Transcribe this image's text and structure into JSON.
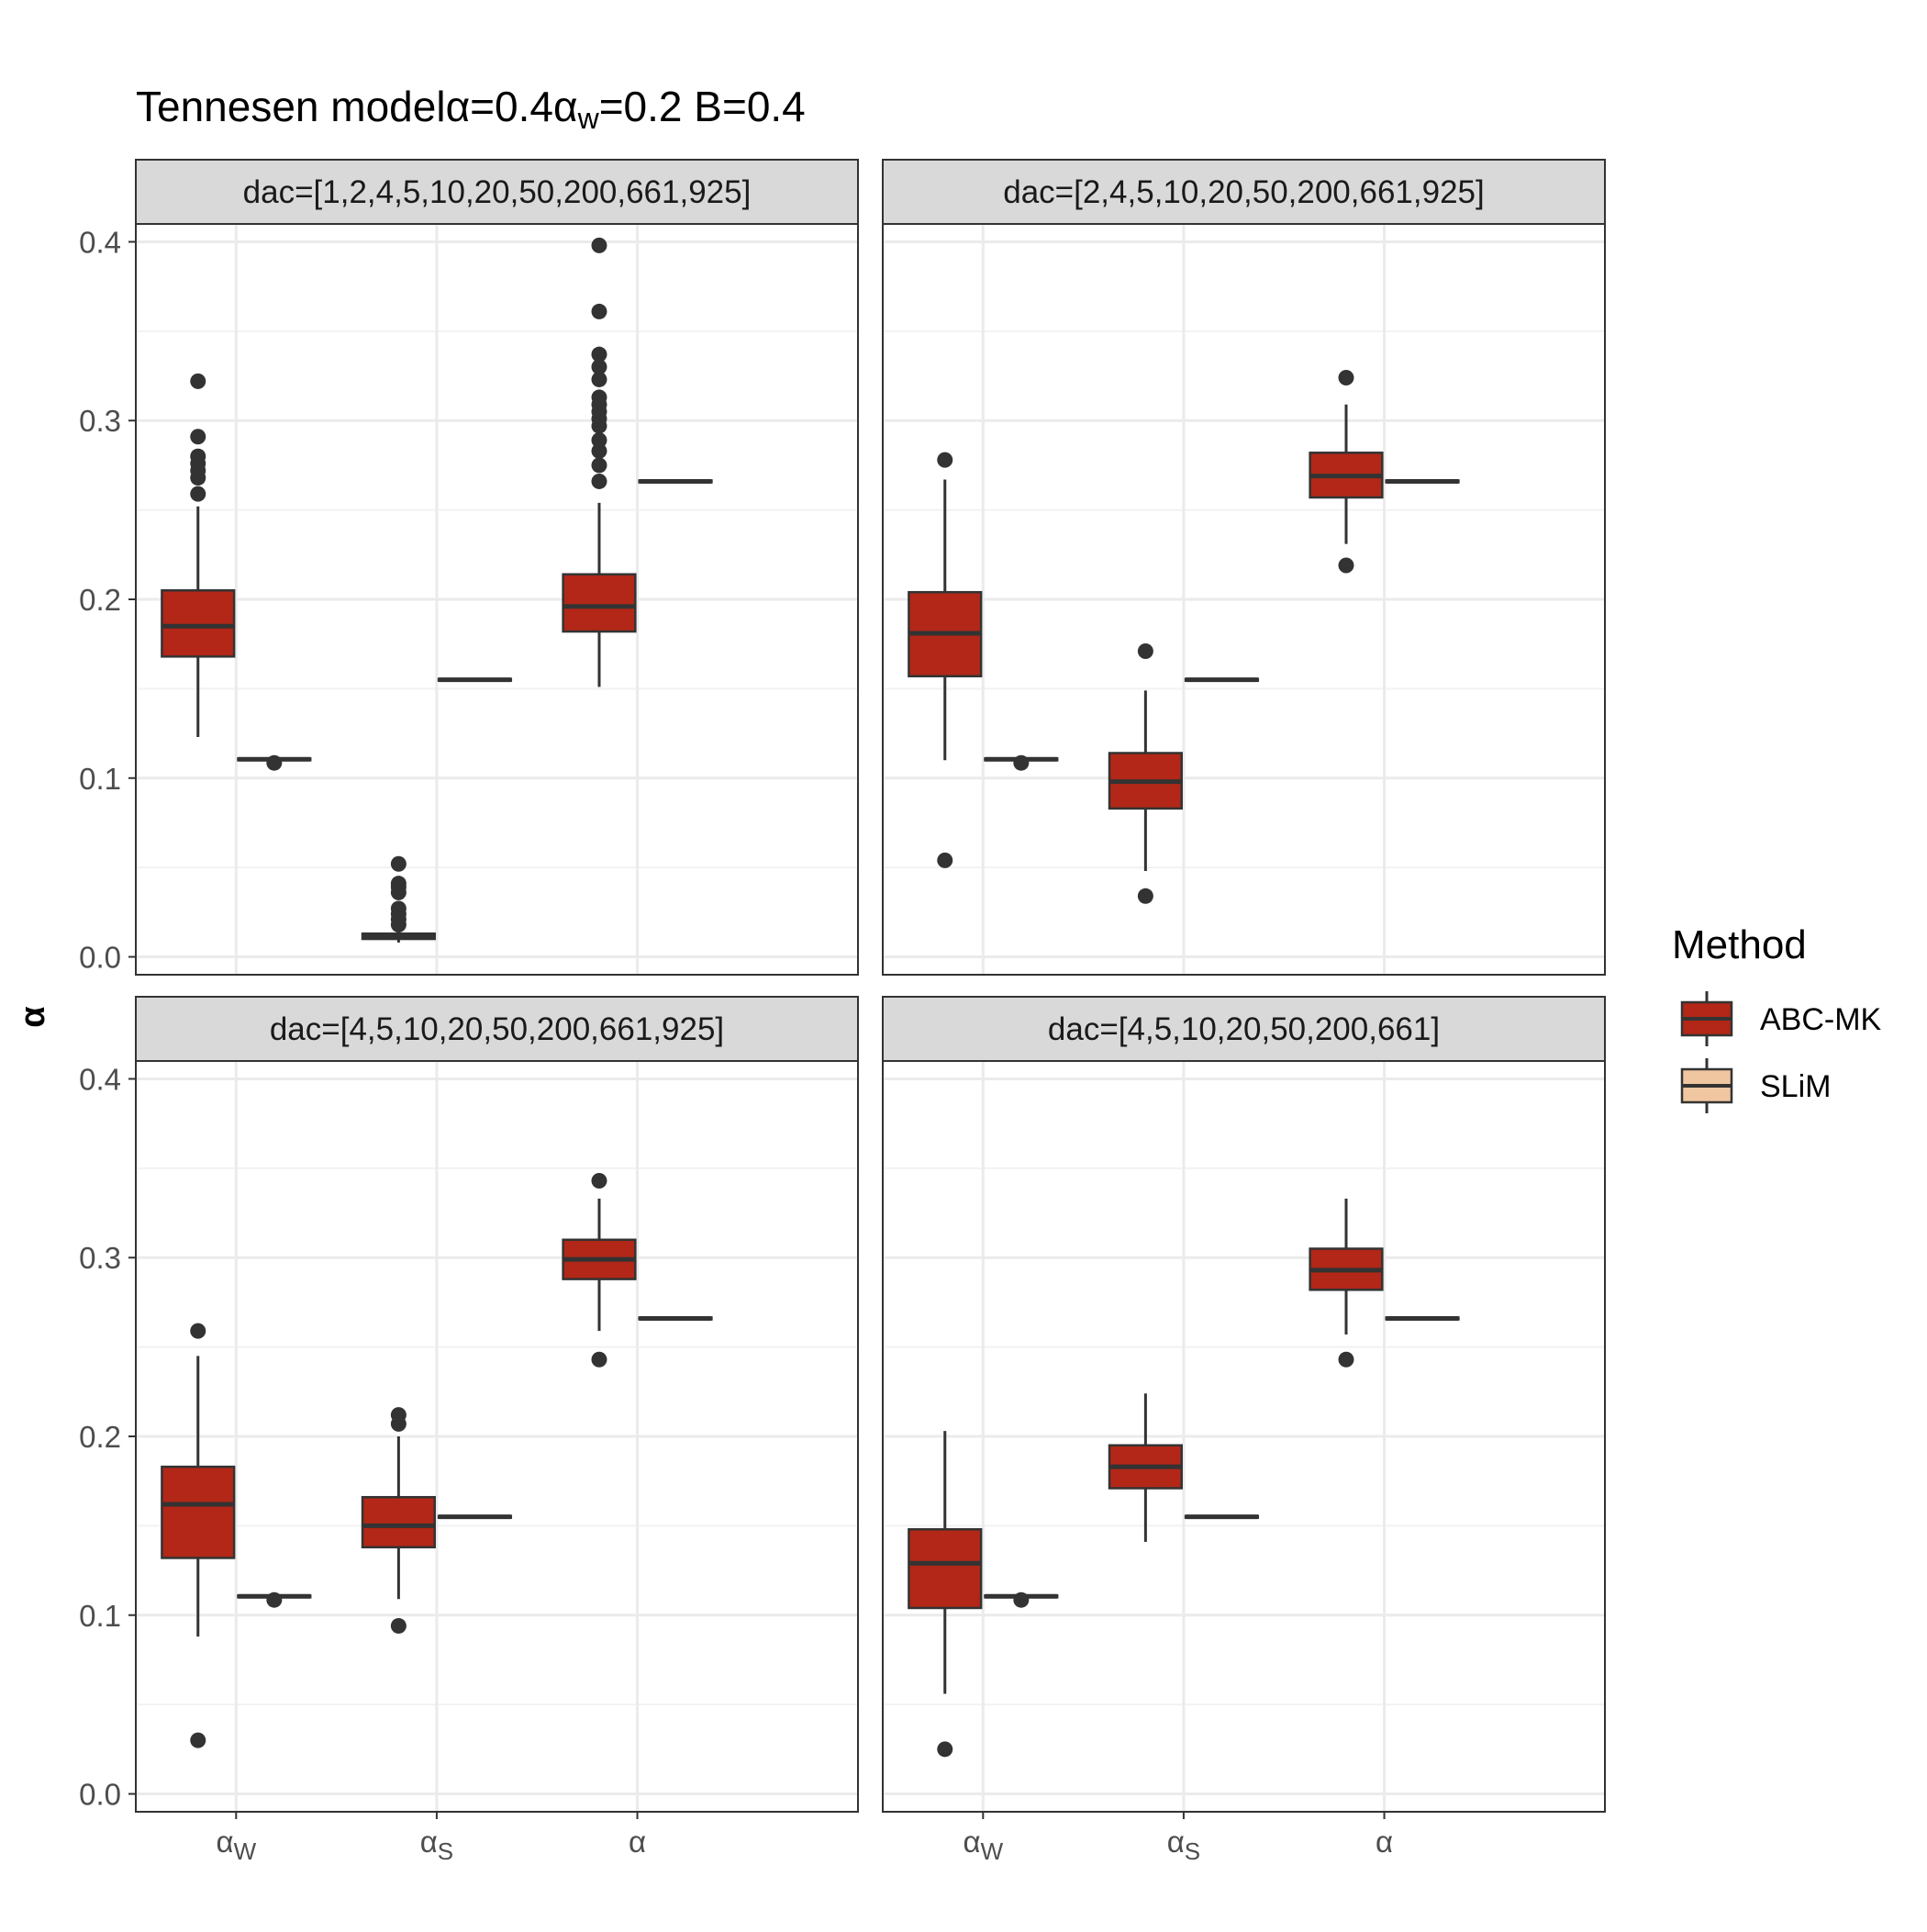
{
  "chart_data": {
    "type": "boxplot",
    "title": {
      "main": "Tennesen model",
      "p1": "α=0.4",
      "p2": "α",
      "p2sub": "w",
      "p3": "=0.2 B=0.4"
    },
    "ylabel": "α",
    "xlabel": "",
    "ylim": [
      -0.01,
      0.41
    ],
    "yticks": [
      0.0,
      0.1,
      0.2,
      0.3,
      0.4
    ],
    "ytick_labels": [
      "0.0",
      "0.1",
      "0.2",
      "0.3",
      "0.4"
    ],
    "categories": [
      {
        "main": "α",
        "sub": "W"
      },
      {
        "main": "α",
        "sub": "S"
      },
      {
        "main": "α",
        "sub": ""
      }
    ],
    "grid": true,
    "legend": {
      "title": "Method",
      "position": "right",
      "entries": [
        {
          "label": "ABC-MK",
          "color": "#b22717"
        },
        {
          "label": "SLiM",
          "color": "#f0c6a0"
        }
      ]
    },
    "colors": {
      "box_outline": "#333333",
      "abc": "#b22717",
      "slim": "#f0c6a0",
      "strip_bg": "#d9d9d9",
      "grid": "#ebebeb"
    },
    "panels": [
      {
        "strip": "dac=[1,2,4,5,10,20,50,200,661,925]",
        "series": [
          {
            "name": "ABC-MK",
            "boxes": [
              {
                "q1": 0.168,
                "median": 0.185,
                "q3": 0.205,
                "whislo": 0.123,
                "whishi": 0.252,
                "outliers": [
                  0.259,
                  0.268,
                  0.272,
                  0.276,
                  0.28,
                  0.291,
                  0.322
                ]
              },
              {
                "q1": 0.01,
                "median": 0.0115,
                "q3": 0.013,
                "whislo": 0.008,
                "whishi": 0.015,
                "outliers": [
                  0.018,
                  0.021,
                  0.024,
                  0.027,
                  0.036,
                  0.039,
                  0.041,
                  0.052
                ]
              },
              {
                "q1": 0.182,
                "median": 0.196,
                "q3": 0.214,
                "whislo": 0.151,
                "whishi": 0.254,
                "outliers": [
                  0.266,
                  0.275,
                  0.283,
                  0.289,
                  0.297,
                  0.301,
                  0.305,
                  0.309,
                  0.313,
                  0.323,
                  0.33,
                  0.337,
                  0.361,
                  0.398
                ]
              }
            ]
          },
          {
            "name": "SLiM",
            "boxes": [
              {
                "q1": 0.11,
                "median": 0.1105,
                "q3": 0.111,
                "whislo": 0.11,
                "whishi": 0.111,
                "outliers": [
                  0.1085
                ]
              },
              {
                "q1": 0.1545,
                "median": 0.155,
                "q3": 0.1555,
                "whislo": 0.1545,
                "whishi": 0.1555,
                "outliers": []
              },
              {
                "q1": 0.2655,
                "median": 0.266,
                "q3": 0.2665,
                "whislo": 0.2655,
                "whishi": 0.2665,
                "outliers": []
              }
            ]
          }
        ]
      },
      {
        "strip": "dac=[2,4,5,10,20,50,200,661,925]",
        "series": [
          {
            "name": "ABC-MK",
            "boxes": [
              {
                "q1": 0.157,
                "median": 0.181,
                "q3": 0.204,
                "whislo": 0.11,
                "whishi": 0.267,
                "outliers": [
                  0.054,
                  0.278
                ]
              },
              {
                "q1": 0.083,
                "median": 0.098,
                "q3": 0.114,
                "whislo": 0.048,
                "whishi": 0.149,
                "outliers": [
                  0.034,
                  0.171
                ]
              },
              {
                "q1": 0.257,
                "median": 0.269,
                "q3": 0.282,
                "whislo": 0.231,
                "whishi": 0.309,
                "outliers": [
                  0.219,
                  0.324
                ]
              }
            ]
          },
          {
            "name": "SLiM",
            "boxes": [
              {
                "q1": 0.11,
                "median": 0.1105,
                "q3": 0.111,
                "whislo": 0.11,
                "whishi": 0.111,
                "outliers": [
                  0.1085
                ]
              },
              {
                "q1": 0.1545,
                "median": 0.155,
                "q3": 0.1555,
                "whislo": 0.1545,
                "whishi": 0.1555,
                "outliers": []
              },
              {
                "q1": 0.2655,
                "median": 0.266,
                "q3": 0.2665,
                "whislo": 0.2655,
                "whishi": 0.2665,
                "outliers": []
              }
            ]
          }
        ]
      },
      {
        "strip": "dac=[4,5,10,20,50,200,661,925]",
        "series": [
          {
            "name": "ABC-MK",
            "boxes": [
              {
                "q1": 0.132,
                "median": 0.162,
                "q3": 0.183,
                "whislo": 0.088,
                "whishi": 0.245,
                "outliers": [
                  0.03,
                  0.259
                ]
              },
              {
                "q1": 0.138,
                "median": 0.15,
                "q3": 0.166,
                "whislo": 0.109,
                "whishi": 0.2,
                "outliers": [
                  0.094,
                  0.207,
                  0.212
                ]
              },
              {
                "q1": 0.288,
                "median": 0.299,
                "q3": 0.31,
                "whislo": 0.259,
                "whishi": 0.333,
                "outliers": [
                  0.243,
                  0.343
                ]
              }
            ]
          },
          {
            "name": "SLiM",
            "boxes": [
              {
                "q1": 0.11,
                "median": 0.1105,
                "q3": 0.111,
                "whislo": 0.11,
                "whishi": 0.111,
                "outliers": [
                  0.1085
                ]
              },
              {
                "q1": 0.1545,
                "median": 0.155,
                "q3": 0.1555,
                "whislo": 0.1545,
                "whishi": 0.1555,
                "outliers": []
              },
              {
                "q1": 0.2655,
                "median": 0.266,
                "q3": 0.2665,
                "whislo": 0.2655,
                "whishi": 0.2665,
                "outliers": []
              }
            ]
          }
        ]
      },
      {
        "strip": "dac=[4,5,10,20,50,200,661]",
        "series": [
          {
            "name": "ABC-MK",
            "boxes": [
              {
                "q1": 0.104,
                "median": 0.129,
                "q3": 0.148,
                "whislo": 0.056,
                "whishi": 0.203,
                "outliers": [
                  0.025
                ]
              },
              {
                "q1": 0.171,
                "median": 0.183,
                "q3": 0.195,
                "whislo": 0.141,
                "whishi": 0.224,
                "outliers": []
              },
              {
                "q1": 0.282,
                "median": 0.293,
                "q3": 0.305,
                "whislo": 0.257,
                "whishi": 0.333,
                "outliers": [
                  0.243
                ]
              }
            ]
          },
          {
            "name": "SLiM",
            "boxes": [
              {
                "q1": 0.11,
                "median": 0.1105,
                "q3": 0.111,
                "whislo": 0.11,
                "whishi": 0.111,
                "outliers": [
                  0.1085
                ]
              },
              {
                "q1": 0.1545,
                "median": 0.155,
                "q3": 0.1555,
                "whislo": 0.1545,
                "whishi": 0.1555,
                "outliers": []
              },
              {
                "q1": 0.2655,
                "median": 0.266,
                "q3": 0.2665,
                "whislo": 0.2655,
                "whishi": 0.2665,
                "outliers": []
              }
            ]
          }
        ]
      }
    ]
  }
}
